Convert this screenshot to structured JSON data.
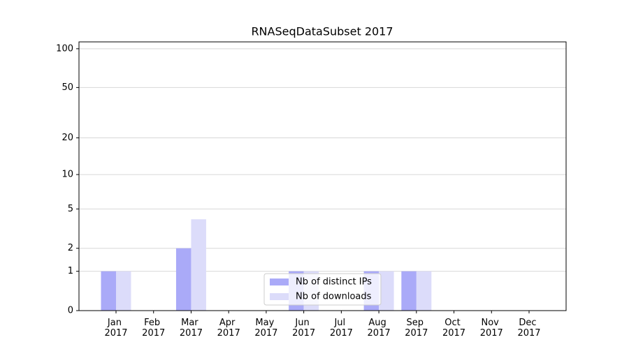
{
  "chart_data": {
    "type": "bar",
    "title": "RNASeqDataSubset 2017",
    "categories": [
      "Jan 2017",
      "Feb 2017",
      "Mar 2017",
      "Apr 2017",
      "May 2017",
      "Jun 2017",
      "Jul 2017",
      "Aug 2017",
      "Sep 2017",
      "Oct 2017",
      "Nov 2017",
      "Dec 2017"
    ],
    "series": [
      {
        "name": "Nb of distinct IPs",
        "color": "#aaaaf8",
        "values": [
          1,
          0,
          2,
          0,
          0,
          1,
          0,
          1,
          1,
          0,
          0,
          0
        ]
      },
      {
        "name": "Nb of downloads",
        "color": "#dcdcfa",
        "values": [
          1,
          0,
          4,
          0,
          0,
          1,
          0,
          1,
          1,
          0,
          0,
          0
        ]
      }
    ],
    "yscale": "symlog",
    "ylim": [
      0,
      113
    ],
    "yticks": [
      0,
      1,
      2,
      5,
      10,
      20,
      50,
      100
    ],
    "grid": true,
    "legend": "lower center"
  }
}
